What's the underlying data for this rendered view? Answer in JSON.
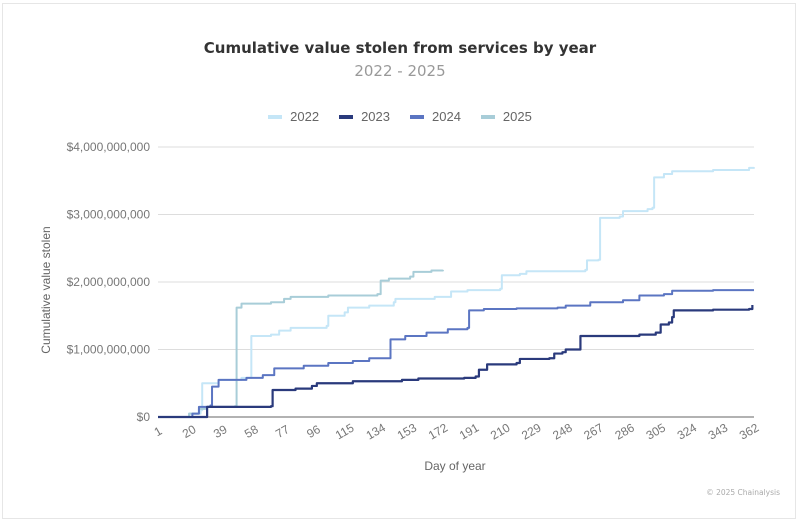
{
  "header": {
    "title": "Cumulative value stolen from services by year",
    "subtitle": "2022 - 2025"
  },
  "footer": {
    "credit": "© 2025 Chainalysis"
  },
  "chart_data": {
    "type": "line",
    "title": "Cumulative value stolen from services by year",
    "subtitle": "2022 - 2025",
    "xlabel": "Day of year",
    "ylabel": "Cumulative value stolen",
    "xlim": [
      1,
      365
    ],
    "ylim": [
      0,
      4000000000
    ],
    "grid": true,
    "legend_position": "top-center",
    "x_ticks": [
      "1",
      "20",
      "39",
      "58",
      "77",
      "96",
      "115",
      "134",
      "153",
      "172",
      "191",
      "210",
      "229",
      "248",
      "267",
      "286",
      "305",
      "324",
      "343",
      "362"
    ],
    "y_ticks": [
      {
        "value": 0,
        "label": "$0"
      },
      {
        "value": 1000000000,
        "label": "$1,000,000,000"
      },
      {
        "value": 2000000000,
        "label": "$2,000,000,000"
      },
      {
        "value": 3000000000,
        "label": "$3,000,000,000"
      },
      {
        "value": 4000000000,
        "label": "$4,000,000,000"
      }
    ],
    "series": [
      {
        "name": "2022",
        "color": "#c5e6f7",
        "points": [
          [
            1,
            0
          ],
          [
            20,
            0.05
          ],
          [
            27,
            0.1
          ],
          [
            28,
            0.5
          ],
          [
            38,
            0.55
          ],
          [
            52,
            0.58
          ],
          [
            57,
            0.58
          ],
          [
            58,
            1.2
          ],
          [
            70,
            1.22
          ],
          [
            75,
            1.28
          ],
          [
            82,
            1.32
          ],
          [
            104,
            1.35
          ],
          [
            105,
            1.5
          ],
          [
            115,
            1.55
          ],
          [
            117,
            1.62
          ],
          [
            130,
            1.65
          ],
          [
            145,
            1.7
          ],
          [
            146,
            1.75
          ],
          [
            170,
            1.78
          ],
          [
            180,
            1.86
          ],
          [
            190,
            1.88
          ],
          [
            210,
            1.9
          ],
          [
            211,
            2.1
          ],
          [
            222,
            2.12
          ],
          [
            226,
            2.16
          ],
          [
            262,
            2.18
          ],
          [
            263,
            2.32
          ],
          [
            270,
            2.33
          ],
          [
            271,
            2.95
          ],
          [
            283,
            2.97
          ],
          [
            285,
            3.05
          ],
          [
            300,
            3.08
          ],
          [
            303,
            3.1
          ],
          [
            304,
            3.55
          ],
          [
            310,
            3.6
          ],
          [
            315,
            3.64
          ],
          [
            340,
            3.66
          ],
          [
            362,
            3.69
          ],
          [
            365,
            3.7
          ]
        ]
      },
      {
        "name": "2023",
        "color": "#2a3a7c",
        "points": [
          [
            1,
            0
          ],
          [
            30,
            0
          ],
          [
            31,
            0.15
          ],
          [
            70,
            0.16
          ],
          [
            71,
            0.4
          ],
          [
            85,
            0.42
          ],
          [
            95,
            0.46
          ],
          [
            98,
            0.5
          ],
          [
            120,
            0.53
          ],
          [
            150,
            0.55
          ],
          [
            160,
            0.57
          ],
          [
            188,
            0.58
          ],
          [
            195,
            0.6
          ],
          [
            197,
            0.7
          ],
          [
            202,
            0.78
          ],
          [
            220,
            0.8
          ],
          [
            222,
            0.86
          ],
          [
            240,
            0.87
          ],
          [
            243,
            0.94
          ],
          [
            248,
            0.96
          ],
          [
            250,
            1.0
          ],
          [
            258,
            1.0
          ],
          [
            259,
            1.2
          ],
          [
            295,
            1.22
          ],
          [
            305,
            1.25
          ],
          [
            308,
            1.37
          ],
          [
            313,
            1.4
          ],
          [
            315,
            1.48
          ],
          [
            316,
            1.58
          ],
          [
            340,
            1.59
          ],
          [
            362,
            1.6
          ],
          [
            364,
            1.66
          ]
        ]
      },
      {
        "name": "2024",
        "color": "#5b75c2",
        "points": [
          [
            1,
            0
          ],
          [
            22,
            0.05
          ],
          [
            26,
            0.15
          ],
          [
            33,
            0.17
          ],
          [
            34,
            0.45
          ],
          [
            38,
            0.55
          ],
          [
            55,
            0.58
          ],
          [
            65,
            0.62
          ],
          [
            72,
            0.72
          ],
          [
            90,
            0.76
          ],
          [
            105,
            0.8
          ],
          [
            120,
            0.83
          ],
          [
            130,
            0.87
          ],
          [
            142,
            0.87
          ],
          [
            143,
            1.15
          ],
          [
            152,
            1.2
          ],
          [
            165,
            1.25
          ],
          [
            178,
            1.3
          ],
          [
            190,
            1.32
          ],
          [
            191,
            1.58
          ],
          [
            200,
            1.6
          ],
          [
            220,
            1.61
          ],
          [
            245,
            1.62
          ],
          [
            250,
            1.65
          ],
          [
            265,
            1.7
          ],
          [
            285,
            1.73
          ],
          [
            295,
            1.8
          ],
          [
            310,
            1.82
          ],
          [
            315,
            1.87
          ],
          [
            340,
            1.88
          ],
          [
            365,
            1.88
          ]
        ]
      },
      {
        "name": "2025",
        "color": "#a8cdd8",
        "points": [
          [
            1,
            0
          ],
          [
            20,
            0.05
          ],
          [
            26,
            0.12
          ],
          [
            30,
            0.15
          ],
          [
            48,
            0.16
          ],
          [
            49,
            1.62
          ],
          [
            52,
            1.68
          ],
          [
            70,
            1.7
          ],
          [
            78,
            1.75
          ],
          [
            82,
            1.78
          ],
          [
            105,
            1.8
          ],
          [
            135,
            1.82
          ],
          [
            137,
            2.02
          ],
          [
            142,
            2.05
          ],
          [
            155,
            2.08
          ],
          [
            157,
            2.15
          ],
          [
            168,
            2.17
          ],
          [
            175,
            2.18
          ]
        ]
      }
    ]
  }
}
